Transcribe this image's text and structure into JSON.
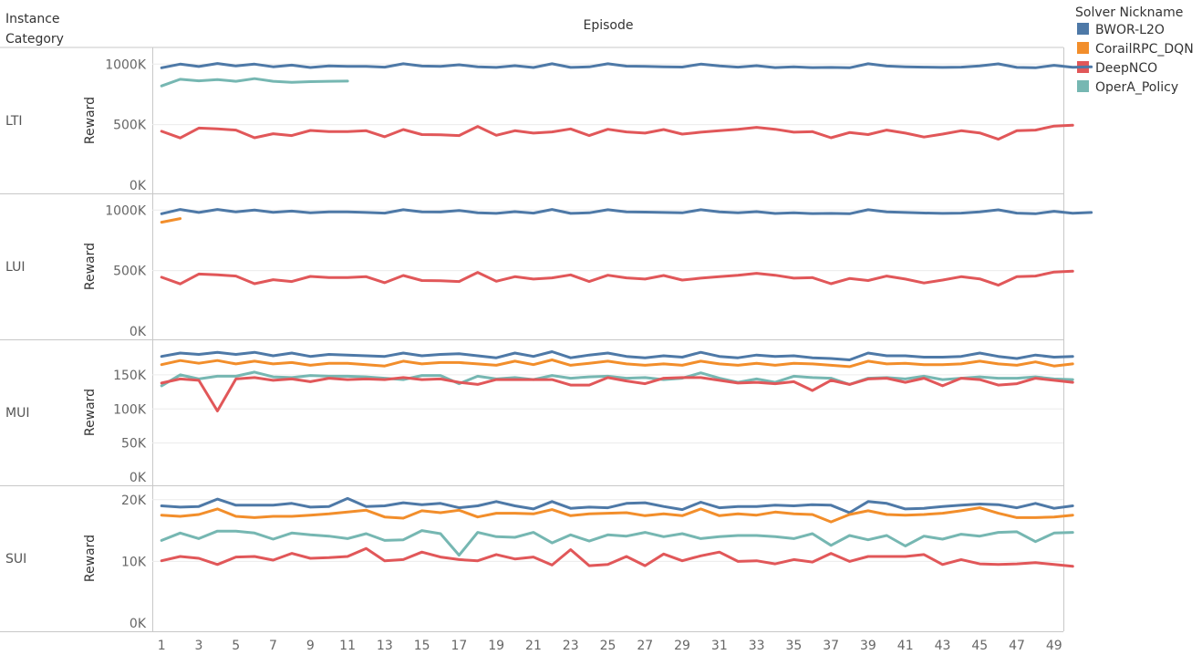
{
  "header": {
    "row_title_line1": "Instance",
    "row_title_line2": "Category",
    "column_title": "Episode"
  },
  "legend": {
    "title": "Solver Nickname",
    "items": [
      {
        "label": "BWOR-L2O",
        "color": "#4e79a7"
      },
      {
        "label": "CorailRPC_DQN",
        "color": "#f28e2b"
      },
      {
        "label": "DeepNCO",
        "color": "#e15759"
      },
      {
        "label": "OperA_Policy",
        "color": "#76b7b2"
      }
    ]
  },
  "chart_data": {
    "type": "line",
    "xlabel": "Episode",
    "x_range": [
      0.5,
      49.5
    ],
    "x_tick_labels": [
      1,
      3,
      5,
      7,
      9,
      11,
      13,
      15,
      17,
      19,
      21,
      23,
      25,
      27,
      29,
      31,
      33,
      35,
      37,
      39,
      41,
      43,
      45,
      47,
      49
    ],
    "panels": [
      {
        "name": "LTI",
        "ylabel": "Reward",
        "ylim": [
          0,
          1070000
        ],
        "y_ticks": [
          0,
          500000,
          1000000
        ],
        "y_tick_labels": [
          "0K",
          "500K",
          "1000K"
        ],
        "series": [
          {
            "name": "BWOR-L2O",
            "x_start": 1,
            "values": [
              970000,
              1000000,
              980000,
              1005000,
              985000,
              1000000,
              978000,
              992000,
              972000,
              985000,
              982000,
              982000,
              975000,
              1003000,
              984000,
              982000,
              995000,
              977000,
              973000,
              987000,
              972000,
              1003000,
              973000,
              977000,
              1003000,
              983000,
              982000,
              978000,
              976000,
              1000000,
              985000,
              975000,
              987000,
              971000,
              977000,
              971000,
              973000,
              970000,
              1003000,
              984000,
              978000,
              975000,
              973000,
              975000,
              985000,
              1002000,
              973000,
              970000,
              990000,
              974000,
              977000
            ]
          },
          {
            "name": "OperA_Policy",
            "x_start": 1,
            "values": [
              820000,
              875000,
              862000,
              872000,
              858000,
              880000,
              858000,
              850000,
              855000,
              858000,
              860000
            ]
          },
          {
            "name": "DeepNCO",
            "x_start": 1,
            "values": [
              445000,
              390000,
              472000,
              465000,
              455000,
              392000,
              425000,
              410000,
              452000,
              443000,
              442000,
              450000,
              400000,
              460000,
              418000,
              417000,
              410000,
              485000,
              412000,
              450000,
              430000,
              440000,
              465000,
              410000,
              462000,
              440000,
              430000,
              460000,
              422000,
              438000,
              450000,
              462000,
              478000,
              462000,
              438000,
              442000,
              392000,
              435000,
              418000,
              455000,
              430000,
              398000,
              422000,
              450000,
              432000,
              380000,
              450000,
              455000,
              488000,
              495000
            ]
          }
        ]
      },
      {
        "name": "LUI",
        "ylabel": "Reward",
        "ylim": [
          0,
          1070000
        ],
        "y_ticks": [
          0,
          500000,
          1000000
        ],
        "y_tick_labels": [
          "0K",
          "500K",
          "1000K"
        ],
        "series": [
          {
            "name": "BWOR-L2O",
            "x_start": 1,
            "values": [
              970000,
              1005000,
              980000,
              1005000,
              985000,
              1000000,
              982000,
              992000,
              977000,
              985000,
              985000,
              980000,
              975000,
              1003000,
              985000,
              984000,
              997000,
              978000,
              973000,
              987000,
              975000,
              1005000,
              973000,
              977000,
              1003000,
              985000,
              983000,
              980000,
              977000,
              1003000,
              985000,
              977000,
              987000,
              972000,
              978000,
              971000,
              973000,
              970000,
              1003000,
              985000,
              980000,
              976000,
              973000,
              975000,
              985000,
              1002000,
              975000,
              970000,
              990000,
              974000,
              980000
            ]
          },
          {
            "name": "CorailRPC_DQN",
            "x_start": 1,
            "values": [
              900000,
              930000
            ]
          },
          {
            "name": "DeepNCO",
            "x_start": 1,
            "values": [
              445000,
              390000,
              472000,
              465000,
              455000,
              392000,
              425000,
              410000,
              452000,
              443000,
              442000,
              450000,
              400000,
              460000,
              418000,
              417000,
              410000,
              485000,
              412000,
              450000,
              430000,
              440000,
              465000,
              410000,
              462000,
              440000,
              430000,
              460000,
              422000,
              438000,
              450000,
              462000,
              478000,
              462000,
              438000,
              442000,
              392000,
              435000,
              418000,
              455000,
              430000,
              398000,
              422000,
              450000,
              432000,
              380000,
              450000,
              455000,
              488000,
              495000
            ]
          }
        ]
      },
      {
        "name": "MUI",
        "ylabel": "Reward",
        "ylim": [
          0,
          190000
        ],
        "y_ticks": [
          0,
          50000,
          100000,
          150000
        ],
        "y_tick_labels": [
          "0K",
          "50K",
          "100K",
          "150K"
        ],
        "series": [
          {
            "name": "BWOR-L2O",
            "x_start": 1,
            "values": [
              177000,
              182000,
              180000,
              183000,
              180000,
              183000,
              178000,
              182000,
              177000,
              180000,
              179000,
              178000,
              177000,
              182000,
              178000,
              180000,
              181000,
              178000,
              175000,
              182000,
              177000,
              184000,
              175000,
              179000,
              182000,
              177000,
              175000,
              178000,
              176000,
              183000,
              177000,
              175000,
              179000,
              177000,
              178000,
              175000,
              174000,
              172000,
              182000,
              178000,
              178000,
              176000,
              176000,
              177000,
              182000,
              177000,
              174000,
              179000,
              176000,
              177000
            ]
          },
          {
            "name": "CorailRPC_DQN",
            "x_start": 1,
            "values": [
              165000,
              171000,
              167000,
              171000,
              166000,
              170000,
              166000,
              168000,
              164000,
              167000,
              167000,
              165000,
              163000,
              170000,
              166000,
              168000,
              168000,
              166000,
              164000,
              170000,
              165000,
              172000,
              164000,
              167000,
              170000,
              166000,
              164000,
              166000,
              164000,
              170000,
              166000,
              164000,
              167000,
              164000,
              167000,
              166000,
              164000,
              162000,
              170000,
              166000,
              167000,
              165000,
              165000,
              166000,
              170000,
              166000,
              164000,
              169000,
              163000,
              166000
            ]
          },
          {
            "name": "OperA_Policy",
            "x_start": 1,
            "values": [
              134000,
              150000,
              144000,
              148000,
              148000,
              154000,
              147000,
              146000,
              149000,
              148000,
              148000,
              147000,
              145000,
              143000,
              149000,
              149000,
              137000,
              148000,
              144000,
              146000,
              143000,
              149000,
              145000,
              147000,
              148000,
              145000,
              146000,
              143000,
              145000,
              153000,
              145000,
              139000,
              144000,
              139000,
              148000,
              146000,
              145000,
              136000,
              145000,
              146000,
              144000,
              148000,
              143000,
              145000,
              147000,
              145000,
              145000,
              147000,
              144000,
              143000
            ]
          },
          {
            "name": "DeepNCO",
            "x_start": 1,
            "values": [
              138000,
              144000,
              142000,
              97000,
              144000,
              146000,
              142000,
              144000,
              140000,
              145000,
              143000,
              144000,
              143000,
              146000,
              143000,
              144000,
              139000,
              136000,
              143000,
              143000,
              143000,
              143000,
              135000,
              135000,
              146000,
              141000,
              137000,
              145000,
              146000,
              146000,
              142000,
              138000,
              139000,
              137000,
              140000,
              127000,
              142000,
              136000,
              144000,
              145000,
              139000,
              145000,
              134000,
              145000,
              143000,
              135000,
              137000,
              145000,
              142000,
              139000
            ]
          }
        ]
      },
      {
        "name": "SUI",
        "ylabel": "Reward",
        "ylim": [
          0,
          21000
        ],
        "y_ticks": [
          0,
          10000,
          20000
        ],
        "y_tick_labels": [
          "0K",
          "10K",
          "20K"
        ],
        "series": [
          {
            "name": "BWOR-L2O",
            "x_start": 1,
            "values": [
              19000,
              18800,
              18900,
              20100,
              19100,
              19100,
              19100,
              19400,
              18800,
              18900,
              20200,
              18900,
              19000,
              19500,
              19200,
              19400,
              18700,
              19000,
              19700,
              19000,
              18500,
              19700,
              18600,
              18800,
              18700,
              19400,
              19500,
              18900,
              18400,
              19600,
              18700,
              18900,
              18900,
              19100,
              19000,
              19200,
              19100,
              17900,
              19700,
              19400,
              18500,
              18600,
              18900,
              19100,
              19300,
              19200,
              18700,
              19400,
              18600,
              19000
            ]
          },
          {
            "name": "CorailRPC_DQN",
            "x_start": 1,
            "values": [
              17500,
              17300,
              17600,
              18500,
              17300,
              17100,
              17300,
              17300,
              17500,
              17700,
              18000,
              18300,
              17200,
              17000,
              18200,
              17900,
              18300,
              17200,
              17800,
              17800,
              17700,
              18400,
              17400,
              17700,
              17800,
              17900,
              17400,
              17700,
              17400,
              18500,
              17400,
              17700,
              17500,
              18000,
              17700,
              17600,
              16400,
              17600,
              18200,
              17600,
              17500,
              17600,
              17800,
              18200,
              18700,
              17800,
              17100,
              17100,
              17200,
              17500
            ]
          },
          {
            "name": "OperA_Policy",
            "x_start": 1,
            "values": [
              13400,
              14600,
              13700,
              14900,
              14900,
              14600,
              13600,
              14600,
              14300,
              14100,
              13700,
              14500,
              13400,
              13500,
              15000,
              14500,
              11000,
              14700,
              14000,
              13900,
              14700,
              13000,
              14300,
              13300,
              14300,
              14100,
              14700,
              14000,
              14500,
              13700,
              14000,
              14200,
              14200,
              14000,
              13700,
              14500,
              12600,
              14200,
              13500,
              14200,
              12500,
              14100,
              13600,
              14400,
              14100,
              14700,
              14800,
              13200,
              14600,
              14700
            ]
          },
          {
            "name": "DeepNCO",
            "x_start": 1,
            "values": [
              10100,
              10800,
              10500,
              9500,
              10700,
              10800,
              10200,
              11300,
              10500,
              10600,
              10800,
              12100,
              10100,
              10300,
              11500,
              10700,
              10300,
              10100,
              11100,
              10400,
              10700,
              9400,
              11900,
              9300,
              9500,
              10800,
              9300,
              11200,
              10100,
              10900,
              11500,
              10000,
              10100,
              9600,
              10300,
              9900,
              11300,
              10000,
              10800,
              10800,
              10800,
              11100,
              9500,
              10300,
              9600,
              9500,
              9600,
              9800,
              9500,
              9200
            ]
          }
        ]
      }
    ]
  }
}
